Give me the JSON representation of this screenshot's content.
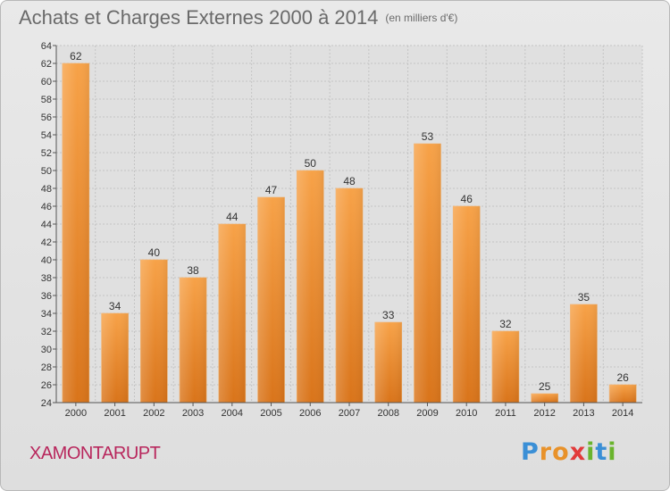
{
  "title": "Achats et Charges Externes 2000 à 2014",
  "unit": "(en milliers d'€)",
  "commune": "XAMONTARUPT",
  "logo": {
    "text": "Proxiti",
    "letters": [
      {
        "ch": "P",
        "color": "#3a8fd6"
      },
      {
        "ch": "r",
        "color": "#e8922a"
      },
      {
        "ch": "o",
        "color": "#e8922a"
      },
      {
        "ch": "x",
        "color": "#e23a3a"
      },
      {
        "ch": "i",
        "color": "#6ab42d"
      },
      {
        "ch": "t",
        "color": "#3a8fd6"
      },
      {
        "ch": "i",
        "color": "#6ab42d"
      }
    ]
  },
  "chart_data": {
    "type": "bar",
    "title": "Achats et Charges Externes 2000 à 2014",
    "subtitle": "(en milliers d'€)",
    "categories": [
      "2000",
      "2001",
      "2002",
      "2003",
      "2004",
      "2005",
      "2006",
      "2007",
      "2008",
      "2009",
      "2010",
      "2011",
      "2012",
      "2013",
      "2014"
    ],
    "values": [
      62,
      34,
      40,
      38,
      44,
      47,
      50,
      48,
      33,
      53,
      46,
      32,
      25,
      35,
      26
    ],
    "ylim": [
      24,
      64
    ],
    "yticks": [
      24,
      26,
      28,
      30,
      32,
      34,
      36,
      38,
      40,
      42,
      44,
      46,
      48,
      50,
      52,
      54,
      56,
      58,
      60,
      62,
      64
    ],
    "xlabel": "",
    "ylabel": "",
    "grid": true,
    "bar_color": "#f39c3c",
    "bar_color_dark": "#d9741a"
  }
}
